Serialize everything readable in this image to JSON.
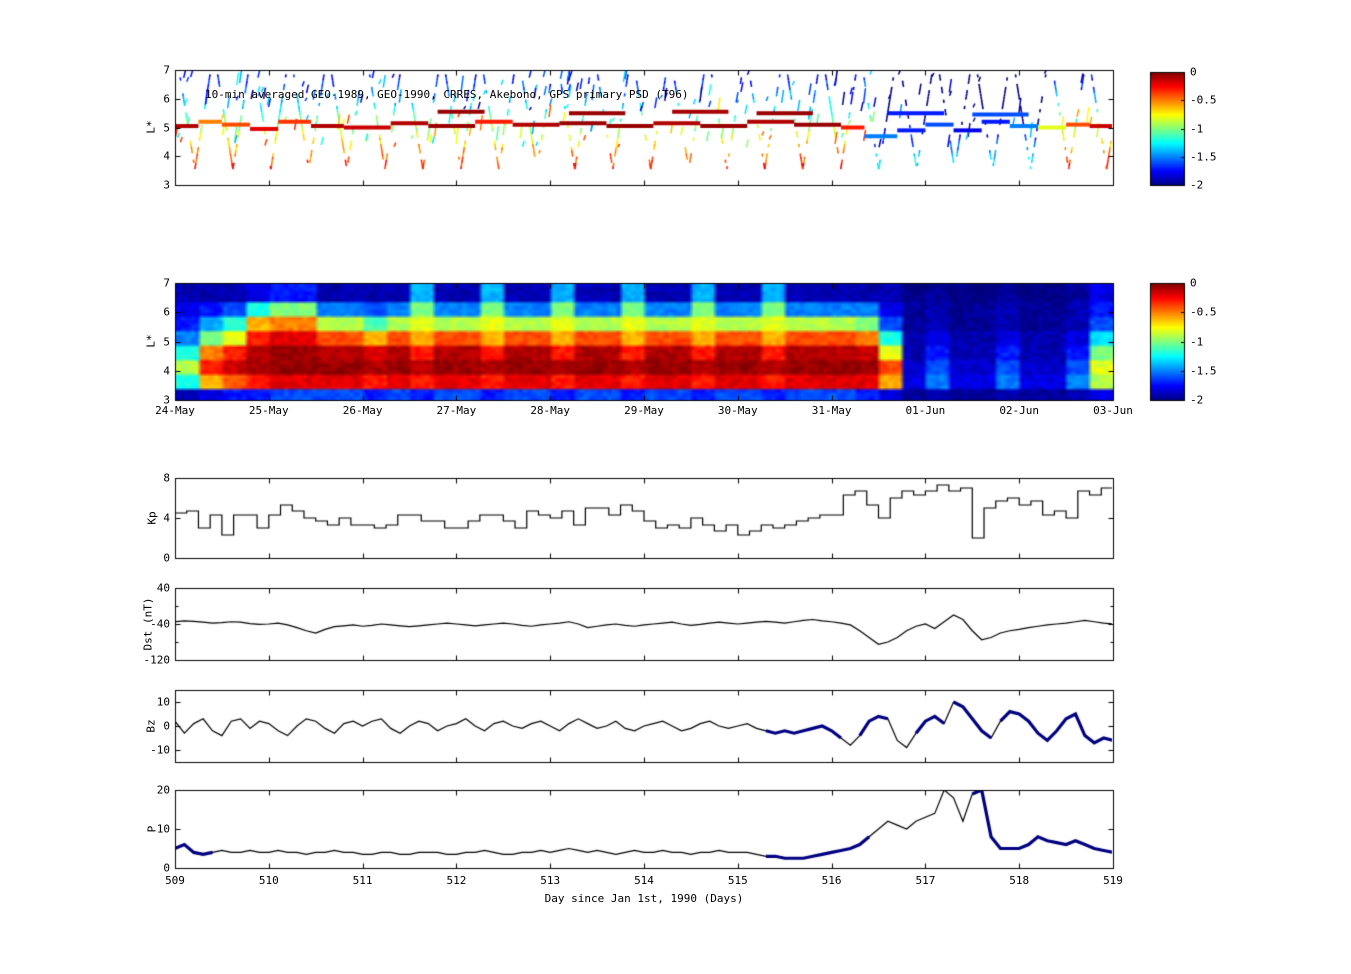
{
  "colorbar": {
    "vmin": -2,
    "vmax": 0,
    "tick_values": [
      0,
      -0.5,
      -1,
      -1.5,
      -2
    ],
    "tick_labels": [
      "0",
      "-0.5",
      "-1",
      "-1.5",
      "-2"
    ]
  },
  "colors": {
    "line": "#000000",
    "highlight": "#000080",
    "axis": "#000000"
  },
  "chart_data": [
    {
      "type": "scatter",
      "title": "10-min averaged GEO-1989, GEO-1990, CRRES, Akebono, GPS  primary PSD (T96)",
      "ylabel": "L*",
      "xlim": [
        509,
        519
      ],
      "ylim": [
        3,
        7
      ],
      "yticks": [
        3,
        4,
        5,
        6,
        7
      ],
      "ytick_labels": [
        "3",
        "4",
        "5",
        "6",
        "7"
      ],
      "color_scale": "jet, PSD log10 value from -2 (blue) to 0 (dark red)",
      "geo_track_segments": [
        [
          509.0,
          509.25,
          5.05,
          -0.1
        ],
        [
          509.25,
          509.5,
          5.2,
          -0.5
        ],
        [
          509.5,
          509.8,
          5.1,
          -0.4
        ],
        [
          509.8,
          510.1,
          4.95,
          -0.2
        ],
        [
          510.1,
          510.45,
          5.2,
          -0.35
        ],
        [
          510.45,
          510.8,
          5.05,
          -0.1
        ],
        [
          510.8,
          511.3,
          5.0,
          -0.15
        ],
        [
          511.3,
          511.7,
          5.15,
          -0.1
        ],
        [
          511.7,
          512.2,
          5.05,
          -0.05
        ],
        [
          512.2,
          512.6,
          5.2,
          -0.3
        ],
        [
          512.6,
          513.1,
          5.1,
          -0.1
        ],
        [
          513.1,
          513.6,
          5.15,
          -0.05
        ],
        [
          513.6,
          514.1,
          5.05,
          -0.05
        ],
        [
          514.1,
          514.6,
          5.15,
          -0.1
        ],
        [
          514.6,
          515.1,
          5.05,
          -0.05
        ],
        [
          515.1,
          515.6,
          5.2,
          -0.1
        ],
        [
          515.6,
          516.1,
          5.1,
          -0.05
        ],
        [
          516.1,
          516.35,
          5.0,
          -0.3
        ],
        [
          516.35,
          516.7,
          4.7,
          -1.5
        ],
        [
          516.7,
          517.0,
          4.9,
          -1.7
        ],
        [
          517.0,
          517.3,
          5.1,
          -1.6
        ],
        [
          517.3,
          517.6,
          4.9,
          -1.8
        ],
        [
          517.6,
          517.9,
          5.2,
          -1.7
        ],
        [
          517.9,
          518.2,
          5.05,
          -1.5
        ],
        [
          518.2,
          518.5,
          5.0,
          -0.8
        ],
        [
          518.5,
          518.75,
          5.1,
          -0.4
        ],
        [
          518.75,
          519.0,
          5.05,
          -0.15
        ],
        [
          511.8,
          512.3,
          5.55,
          -0.05
        ],
        [
          513.2,
          513.8,
          5.5,
          -0.05
        ],
        [
          514.3,
          514.9,
          5.55,
          -0.08
        ],
        [
          515.2,
          515.8,
          5.5,
          -0.05
        ],
        [
          516.6,
          517.2,
          5.5,
          -1.7
        ],
        [
          517.5,
          518.1,
          5.45,
          -1.6
        ]
      ],
      "orbit_streaks": {
        "x_start": 509.05,
        "x_end": 518.95,
        "period": 0.405,
        "l_top": 6.85,
        "l_bottom": 3.55,
        "seed": 7
      },
      "random_dashes": {
        "count": 170,
        "seed": 11
      }
    },
    {
      "type": "heatmap",
      "ylabel": "L*",
      "xlim": [
        509,
        519
      ],
      "ylim": [
        3,
        7
      ],
      "yticks": [
        3,
        4,
        5,
        6,
        7
      ],
      "ytick_labels": [
        "3",
        "4",
        "5",
        "6",
        "7"
      ],
      "x_tick_labels": [
        "24-May",
        "25-May",
        "26-May",
        "27-May",
        "28-May",
        "29-May",
        "30-May",
        "31-May",
        "01-Jun",
        "02-Jun",
        "03-Jun"
      ],
      "vmin": -2,
      "vmax": 0,
      "rows": 8,
      "row_l_min": 3,
      "row_l_max": 7,
      "columns": [
        [
          -1.9,
          -1.2,
          -0.9,
          -1.2,
          -1.5,
          -1.7,
          -1.8,
          -1.9
        ],
        [
          -1.8,
          -0.6,
          -0.3,
          -0.5,
          -1.0,
          -1.4,
          -1.7,
          -1.9
        ],
        [
          -1.7,
          -0.4,
          -0.15,
          -0.3,
          -0.8,
          -1.2,
          -1.6,
          -1.9
        ],
        [
          -1.7,
          -0.3,
          -0.1,
          -0.1,
          -0.3,
          -0.6,
          -1.2,
          -1.8
        ],
        [
          -1.6,
          -0.2,
          -0.05,
          -0.05,
          -0.2,
          -0.5,
          -1.0,
          -1.7
        ],
        [
          -1.6,
          -0.2,
          -0.05,
          -0.05,
          -0.2,
          -0.5,
          -1.0,
          -1.7
        ],
        [
          -1.6,
          -0.2,
          -0.05,
          -0.1,
          -0.4,
          -0.9,
          -1.5,
          -1.9
        ],
        [
          -1.6,
          -0.2,
          -0.05,
          -0.1,
          -0.4,
          -0.9,
          -1.5,
          -1.9
        ],
        [
          -1.7,
          -0.3,
          -0.1,
          -0.2,
          -0.6,
          -1.1,
          -1.6,
          -1.9
        ],
        [
          -1.6,
          -0.2,
          -0.05,
          -0.1,
          -0.4,
          -0.9,
          -1.5,
          -1.9
        ],
        [
          -1.7,
          -0.3,
          -0.1,
          -0.3,
          -0.6,
          -0.8,
          -1.0,
          -1.4
        ],
        [
          -1.6,
          -0.2,
          -0.05,
          -0.1,
          -0.4,
          -0.9,
          -1.5,
          -1.9
        ],
        [
          -1.6,
          -0.2,
          -0.05,
          -0.1,
          -0.4,
          -0.9,
          -1.5,
          -1.9
        ],
        [
          -1.7,
          -0.3,
          -0.1,
          -0.3,
          -0.6,
          -0.8,
          -1.0,
          -1.4
        ],
        [
          -1.6,
          -0.2,
          -0.05,
          -0.1,
          -0.4,
          -0.9,
          -1.5,
          -1.9
        ],
        [
          -1.6,
          -0.2,
          -0.05,
          -0.1,
          -0.4,
          -0.9,
          -1.5,
          -1.9
        ],
        [
          -1.7,
          -0.3,
          -0.1,
          -0.3,
          -0.6,
          -0.8,
          -1.0,
          -1.4
        ],
        [
          -1.6,
          -0.2,
          -0.05,
          -0.1,
          -0.4,
          -0.9,
          -1.5,
          -1.9
        ],
        [
          -1.6,
          -0.2,
          -0.05,
          -0.1,
          -0.4,
          -0.9,
          -1.5,
          -1.9
        ],
        [
          -1.7,
          -0.3,
          -0.1,
          -0.3,
          -0.6,
          -0.8,
          -1.0,
          -1.4
        ],
        [
          -1.6,
          -0.2,
          -0.05,
          -0.1,
          -0.4,
          -0.9,
          -1.5,
          -1.9
        ],
        [
          -1.6,
          -0.2,
          -0.05,
          -0.1,
          -0.4,
          -0.9,
          -1.5,
          -1.9
        ],
        [
          -1.7,
          -0.3,
          -0.1,
          -0.3,
          -0.6,
          -0.8,
          -1.0,
          -1.4
        ],
        [
          -1.6,
          -0.2,
          -0.05,
          -0.1,
          -0.4,
          -0.9,
          -1.5,
          -1.9
        ],
        [
          -1.6,
          -0.2,
          -0.05,
          -0.1,
          -0.4,
          -0.9,
          -1.5,
          -1.9
        ],
        [
          -1.7,
          -0.3,
          -0.1,
          -0.3,
          -0.6,
          -0.8,
          -1.0,
          -1.4
        ],
        [
          -1.6,
          -0.2,
          -0.05,
          -0.1,
          -0.4,
          -0.9,
          -1.5,
          -1.9
        ],
        [
          -1.6,
          -0.2,
          -0.05,
          -0.1,
          -0.4,
          -0.9,
          -1.5,
          -1.9
        ],
        [
          -1.6,
          -0.2,
          -0.05,
          -0.1,
          -0.4,
          -0.9,
          -1.5,
          -1.9
        ],
        [
          -1.7,
          -0.2,
          -0.05,
          -0.15,
          -0.5,
          -1.0,
          -1.5,
          -1.9
        ],
        [
          -1.8,
          -0.6,
          -0.4,
          -0.8,
          -1.2,
          -1.6,
          -1.8,
          -1.9
        ],
        [
          -1.95,
          -1.8,
          -1.85,
          -1.9,
          -1.9,
          -1.95,
          -1.95,
          -2
        ],
        [
          -1.9,
          -1.5,
          -1.6,
          -1.7,
          -1.8,
          -1.9,
          -1.9,
          -1.95
        ],
        [
          -1.95,
          -1.8,
          -1.85,
          -1.9,
          -1.9,
          -1.95,
          -1.95,
          -2
        ],
        [
          -1.95,
          -1.8,
          -1.85,
          -1.9,
          -1.9,
          -1.95,
          -1.95,
          -2
        ],
        [
          -1.9,
          -1.5,
          -1.6,
          -1.7,
          -1.8,
          -1.9,
          -1.9,
          -1.95
        ],
        [
          -1.95,
          -1.8,
          -1.85,
          -1.9,
          -1.9,
          -1.95,
          -1.95,
          -2
        ],
        [
          -1.95,
          -1.8,
          -1.85,
          -1.9,
          -1.9,
          -1.95,
          -1.95,
          -2
        ],
        [
          -1.9,
          -1.5,
          -1.6,
          -1.7,
          -1.8,
          -1.9,
          -1.9,
          -1.95
        ],
        [
          -1.8,
          -0.9,
          -0.8,
          -1.0,
          -1.3,
          -1.6,
          -1.7,
          -1.8
        ]
      ]
    },
    {
      "type": "line",
      "step": true,
      "ylabel": "Kp",
      "xlim": [
        509,
        519
      ],
      "ylim": [
        0,
        8
      ],
      "yticks": [
        8,
        4,
        0
      ],
      "ytick_labels": [
        "8",
        "4",
        "0"
      ],
      "x_start": 509,
      "x_step": 0.125,
      "values": [
        4.5,
        4.7,
        3.0,
        4.3,
        2.3,
        4.3,
        4.3,
        3.0,
        4.3,
        5.3,
        4.7,
        4.0,
        3.7,
        3.3,
        4.0,
        3.3,
        3.3,
        3.0,
        3.3,
        4.3,
        4.3,
        3.7,
        3.7,
        3.0,
        3.0,
        3.7,
        4.3,
        4.3,
        3.7,
        3.0,
        4.7,
        4.3,
        4.0,
        4.7,
        3.3,
        5.0,
        5.0,
        4.3,
        5.3,
        4.7,
        3.7,
        3.0,
        3.3,
        3.0,
        4.0,
        3.3,
        2.7,
        3.3,
        2.3,
        2.7,
        3.3,
        3.0,
        3.3,
        3.7,
        4.0,
        4.3,
        4.3,
        6.3,
        6.7,
        5.3,
        4.0,
        6.0,
        6.7,
        6.3,
        6.7,
        7.3,
        6.7,
        7.0,
        2.0,
        5.0,
        5.7,
        6.0,
        5.3,
        5.7,
        4.3,
        4.7,
        4.0,
        6.7,
        6.3,
        7.0
      ]
    },
    {
      "type": "line",
      "ylabel": "Dst (nT)",
      "xlim": [
        509,
        519
      ],
      "ylim": [
        -120,
        40
      ],
      "yticks": [
        40,
        -40,
        -120
      ],
      "ytick_labels": [
        "40",
        "-40",
        "-120"
      ],
      "minor_yticks": [
        0,
        -80
      ],
      "x_start": 509,
      "x_step": 0.1,
      "values": [
        -35,
        -33,
        -34,
        -36,
        -38,
        -37,
        -35,
        -36,
        -39,
        -41,
        -40,
        -38,
        -42,
        -48,
        -55,
        -60,
        -52,
        -46,
        -44,
        -42,
        -45,
        -43,
        -40,
        -42,
        -44,
        -46,
        -44,
        -42,
        -40,
        -38,
        -40,
        -42,
        -44,
        -42,
        -40,
        -38,
        -40,
        -43,
        -45,
        -42,
        -40,
        -38,
        -35,
        -40,
        -48,
        -45,
        -42,
        -40,
        -43,
        -45,
        -42,
        -40,
        -38,
        -36,
        -40,
        -43,
        -41,
        -38,
        -36,
        -38,
        -40,
        -38,
        -36,
        -34,
        -36,
        -38,
        -35,
        -32,
        -30,
        -33,
        -35,
        -38,
        -42,
        -55,
        -70,
        -85,
        -80,
        -70,
        -55,
        -45,
        -40,
        -50,
        -35,
        -20,
        -30,
        -55,
        -75,
        -70,
        -60,
        -55,
        -52,
        -48,
        -45,
        -42,
        -40,
        -38,
        -35,
        -32,
        -35,
        -38,
        -40
      ]
    },
    {
      "type": "line",
      "ylabel": "Bz",
      "xlim": [
        509,
        519
      ],
      "ylim": [
        -15,
        15
      ],
      "yticks": [
        10,
        0,
        -10
      ],
      "ytick_labels": [
        "10",
        "0",
        "-10"
      ],
      "x_start": 509,
      "x_step": 0.1,
      "values": [
        2,
        -3,
        1,
        3,
        -2,
        -4,
        2,
        3,
        -1,
        2,
        1,
        -2,
        -4,
        0,
        3,
        2,
        -1,
        -3,
        1,
        2,
        0,
        2,
        3,
        -1,
        -3,
        0,
        2,
        1,
        -2,
        0,
        1,
        3,
        0,
        -2,
        1,
        2,
        0,
        -1,
        1,
        2,
        0,
        -2,
        1,
        3,
        1,
        -1,
        0,
        2,
        -1,
        -2,
        0,
        1,
        2,
        0,
        -2,
        -1,
        1,
        2,
        0,
        -1,
        0,
        1,
        -1,
        -2,
        -3,
        -2,
        -3,
        -2,
        -1,
        0,
        -2,
        -5,
        -8,
        -4,
        2,
        4,
        3,
        -6,
        -9,
        -3,
        2,
        4,
        1,
        10,
        8,
        3,
        -2,
        -5,
        2,
        6,
        5,
        2,
        -3,
        -6,
        -2,
        3,
        5,
        -4,
        -7,
        -5,
        -6
      ],
      "highlight_ranges": [
        [
          515.35,
          516.05
        ],
        [
          516.3,
          516.6
        ],
        [
          516.95,
          517.15
        ],
        [
          517.3,
          517.65
        ],
        [
          517.85,
          519.0
        ]
      ]
    },
    {
      "type": "line",
      "ylabel": "P",
      "xlabel": "Day since Jan 1st, 1990 (Days)",
      "xlim": [
        509,
        519
      ],
      "ylim": [
        0,
        20
      ],
      "yticks": [
        20,
        10,
        0
      ],
      "ytick_labels": [
        "20",
        "10",
        "0"
      ],
      "xticks": [
        509,
        510,
        511,
        512,
        513,
        514,
        515,
        516,
        517,
        518,
        519
      ],
      "xtick_labels": [
        "509",
        "510",
        "511",
        "512",
        "513",
        "514",
        "515",
        "516",
        "517",
        "518",
        "519"
      ],
      "x_start": 509,
      "x_step": 0.1,
      "values": [
        5,
        6,
        4,
        3.5,
        4,
        4.5,
        4,
        4,
        4.5,
        4,
        4,
        4.5,
        4,
        4,
        3.5,
        4,
        4,
        4.5,
        4,
        4,
        3.5,
        3.5,
        4,
        4,
        3.5,
        3.5,
        4,
        4,
        4,
        3.5,
        3.5,
        4,
        4,
        4.5,
        4,
        3.5,
        3.5,
        4,
        4,
        4.5,
        4,
        4.5,
        5,
        4.5,
        4,
        4.5,
        4,
        3.5,
        4,
        4.5,
        4,
        4,
        4.5,
        4,
        4,
        3.5,
        4,
        4,
        4.5,
        4,
        4,
        4,
        3.5,
        3,
        3,
        2.5,
        2.5,
        2.5,
        3,
        3.5,
        4,
        4.5,
        5,
        6,
        8,
        10,
        12,
        11,
        10,
        12,
        13,
        14,
        20,
        18,
        12,
        19,
        20,
        8,
        5,
        5,
        5,
        6,
        8,
        7,
        6.5,
        6,
        7,
        6,
        5,
        4.5,
        4
      ],
      "highlight_ranges": [
        [
          509.0,
          509.35
        ],
        [
          515.35,
          516.35
        ],
        [
          517.55,
          519.0
        ]
      ]
    }
  ]
}
